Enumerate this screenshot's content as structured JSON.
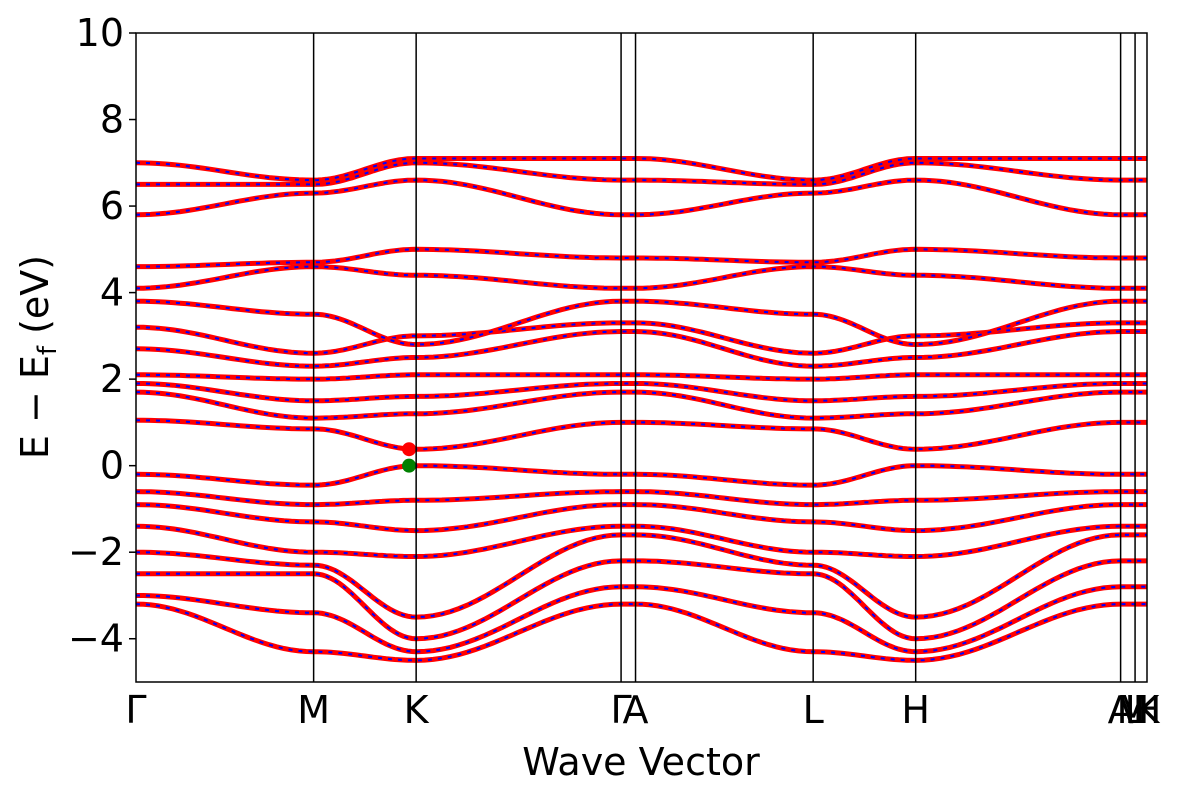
{
  "chart_data": {
    "type": "line",
    "title": "",
    "xlabel": "Wave Vector",
    "ylabel": {
      "main": "E − E",
      "subscript": "f",
      "unit": "(eV)"
    },
    "ylim": [
      -5,
      10
    ],
    "xlim": [
      0,
      1
    ],
    "yticks": [
      -4,
      -2,
      0,
      2,
      4,
      6,
      8,
      10
    ],
    "ytick_labels": [
      "−4",
      "−2",
      "0",
      "2",
      "4",
      "6",
      "8",
      "10"
    ],
    "kpoints": [
      {
        "label": "Γ",
        "x": 0.0,
        "line": false
      },
      {
        "label": "M",
        "x": 0.1757,
        "line": true
      },
      {
        "label": "K",
        "x": 0.2771,
        "line": true
      },
      {
        "label": "Γ",
        "x": 0.4798,
        "line": true
      },
      {
        "label": "A",
        "x": 0.4941,
        "line": true
      },
      {
        "label": "L",
        "x": 0.6698,
        "line": true
      },
      {
        "label": "H",
        "x": 0.7712,
        "line": true
      },
      {
        "label": "A",
        "x": 0.9739,
        "line": true
      },
      {
        "label": "L",
        "x": 0.9882,
        "line": true
      },
      {
        "label": "M",
        "x": 0.9882,
        "line": false
      },
      {
        "label": "H",
        "x": 1.0,
        "line": false
      },
      {
        "label": "K",
        "x": 1.0,
        "line": false
      }
    ],
    "tick_label_text": [
      "Γ",
      "M",
      "K",
      "Γ",
      "A",
      "L",
      "H",
      "A",
      "M",
      "L",
      "H",
      "K"
    ],
    "series_style": {
      "band_color": "#ff0000",
      "overlay_color": "#0000ff"
    },
    "bands": {
      "conduction": [
        {
          "x": [
            0,
            0.1757,
            0.2771,
            0.4798,
            0.4941,
            0.6698,
            0.7712,
            0.9739
          ],
          "y": [
            1.05,
            0.85,
            0.38,
            1.0,
            1.0,
            0.85,
            0.38,
            1.0
          ]
        },
        {
          "x": [
            0,
            0.1757,
            0.2771,
            0.4798,
            0.4941,
            0.6698,
            0.7712,
            0.9739
          ],
          "y": [
            1.7,
            1.1,
            1.2,
            1.7,
            1.7,
            1.1,
            1.2,
            1.7
          ]
        },
        {
          "x": [
            0,
            0.1757,
            0.2771,
            0.4798,
            0.4941,
            0.6698,
            0.7712,
            0.9739
          ],
          "y": [
            1.9,
            1.5,
            1.6,
            1.9,
            1.9,
            1.5,
            1.6,
            1.9
          ]
        },
        {
          "x": [
            0,
            0.1757,
            0.2771,
            0.4798,
            0.4941,
            0.6698,
            0.7712,
            0.9739
          ],
          "y": [
            2.1,
            2.0,
            2.1,
            2.1,
            2.1,
            2.0,
            2.1,
            2.1
          ]
        },
        {
          "x": [
            0,
            0.1757,
            0.2771,
            0.4798,
            0.4941,
            0.6698,
            0.7712,
            0.9739
          ],
          "y": [
            2.7,
            2.3,
            2.5,
            3.1,
            3.1,
            2.3,
            2.5,
            3.1
          ]
        },
        {
          "x": [
            0,
            0.1757,
            0.2771,
            0.4798,
            0.4941,
            0.6698,
            0.7712,
            0.9739
          ],
          "y": [
            3.2,
            2.6,
            3.0,
            3.3,
            3.3,
            2.6,
            3.0,
            3.3
          ]
        },
        {
          "x": [
            0,
            0.1757,
            0.2771,
            0.4798,
            0.4941,
            0.6698,
            0.7712,
            0.9739
          ],
          "y": [
            3.8,
            3.5,
            2.8,
            3.8,
            3.8,
            3.5,
            2.8,
            3.8
          ]
        },
        {
          "x": [
            0,
            0.1757,
            0.2771,
            0.4798,
            0.4941,
            0.6698,
            0.7712,
            0.9739
          ],
          "y": [
            4.1,
            4.6,
            4.4,
            4.1,
            4.1,
            4.6,
            4.4,
            4.1
          ]
        },
        {
          "x": [
            0,
            0.1757,
            0.2771,
            0.4798,
            0.4941,
            0.6698,
            0.7712,
            0.9739
          ],
          "y": [
            4.6,
            4.7,
            5.0,
            4.8,
            4.8,
            4.7,
            5.0,
            4.8
          ]
        },
        {
          "x": [
            0,
            0.1757,
            0.2771,
            0.4798,
            0.4941,
            0.6698,
            0.7712,
            0.9739
          ],
          "y": [
            5.8,
            6.3,
            6.6,
            5.8,
            5.8,
            6.3,
            6.6,
            5.8
          ]
        },
        {
          "x": [
            0,
            0.1757,
            0.2771,
            0.4798,
            0.4941,
            0.6698,
            0.7712,
            0.9739
          ],
          "y": [
            6.5,
            6.5,
            7.0,
            6.6,
            6.6,
            6.5,
            7.0,
            6.6
          ]
        },
        {
          "x": [
            0,
            0.1757,
            0.2771,
            0.4798,
            0.4941,
            0.6698,
            0.7712,
            0.9739
          ],
          "y": [
            7.0,
            6.6,
            7.1,
            7.1,
            7.1,
            6.6,
            7.1,
            7.1
          ]
        }
      ],
      "valence": [
        {
          "x": [
            0,
            0.1757,
            0.2771,
            0.4798,
            0.4941,
            0.6698,
            0.7712,
            0.9739
          ],
          "y": [
            -0.2,
            -0.45,
            0.0,
            -0.2,
            -0.2,
            -0.45,
            0.0,
            -0.2
          ]
        },
        {
          "x": [
            0,
            0.1757,
            0.2771,
            0.4798,
            0.4941,
            0.6698,
            0.7712,
            0.9739
          ],
          "y": [
            -0.6,
            -0.9,
            -0.8,
            -0.6,
            -0.6,
            -0.9,
            -0.8,
            -0.6
          ]
        },
        {
          "x": [
            0,
            0.1757,
            0.2771,
            0.4798,
            0.4941,
            0.6698,
            0.7712,
            0.9739
          ],
          "y": [
            -0.9,
            -1.3,
            -1.5,
            -0.9,
            -0.9,
            -1.3,
            -1.5,
            -0.9
          ]
        },
        {
          "x": [
            0,
            0.1757,
            0.2771,
            0.4798,
            0.4941,
            0.6698,
            0.7712,
            0.9739
          ],
          "y": [
            -1.4,
            -2.0,
            -2.1,
            -1.4,
            -1.4,
            -2.0,
            -2.1,
            -1.4
          ]
        },
        {
          "x": [
            0,
            0.1757,
            0.2771,
            0.4798,
            0.4941,
            0.6698,
            0.7712,
            0.9739
          ],
          "y": [
            -2.0,
            -2.3,
            -3.5,
            -1.6,
            -1.6,
            -2.3,
            -3.5,
            -1.6
          ]
        },
        {
          "x": [
            0,
            0.1757,
            0.2771,
            0.4798,
            0.4941,
            0.6698,
            0.7712,
            0.9739
          ],
          "y": [
            -2.5,
            -2.5,
            -4.0,
            -2.2,
            -2.2,
            -2.5,
            -4.0,
            -2.2
          ]
        },
        {
          "x": [
            0,
            0.1757,
            0.2771,
            0.4798,
            0.4941,
            0.6698,
            0.7712,
            0.9739
          ],
          "y": [
            -3.0,
            -3.4,
            -4.3,
            -2.8,
            -2.8,
            -3.4,
            -4.3,
            -2.8
          ]
        },
        {
          "x": [
            0,
            0.1757,
            0.2771,
            0.4798,
            0.4941,
            0.6698,
            0.7712,
            0.9739
          ],
          "y": [
            -3.2,
            -4.3,
            -4.5,
            -3.2,
            -3.2,
            -4.3,
            -4.5,
            -3.2
          ]
        }
      ]
    },
    "markers": [
      {
        "kind": "cbm",
        "x": 0.2701,
        "y": 0.38,
        "color": "#ff0000"
      },
      {
        "kind": "vbm",
        "x": 0.2701,
        "y": 0.0,
        "color": "#008000"
      }
    ]
  }
}
